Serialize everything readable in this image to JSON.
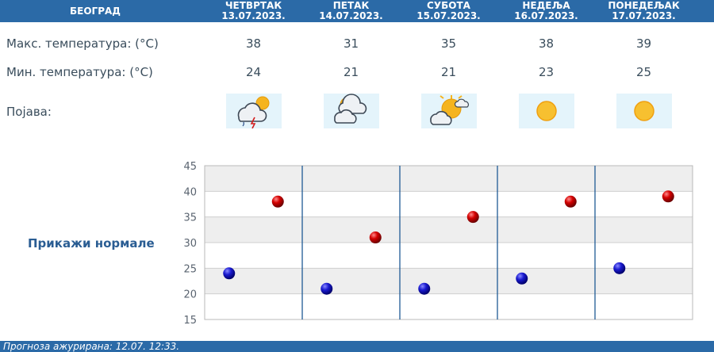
{
  "header": {
    "city": "БЕОГРАД",
    "days": [
      {
        "name": "ЧЕТВРТАК",
        "date": "13.07.2023."
      },
      {
        "name": "ПЕТАК",
        "date": "14.07.2023."
      },
      {
        "name": "СУБОТА",
        "date": "15.07.2023."
      },
      {
        "name": "НЕДЕЉА",
        "date": "16.07.2023."
      },
      {
        "name": "ПОНЕДЕЉАК",
        "date": "17.07.2023."
      }
    ]
  },
  "rows": {
    "max_label": "Макс. температура: (°C)",
    "min_label": "Мин. температура: (°C)",
    "phenomenon_label": "Појава:",
    "max": [
      "38",
      "31",
      "35",
      "38",
      "39"
    ],
    "min": [
      "24",
      "21",
      "21",
      "23",
      "25"
    ],
    "icons": [
      "thunderstorm-sun-icon",
      "partly-cloudy-icon",
      "sun-behind-cloud-icon",
      "sunny-icon",
      "sunny-icon"
    ]
  },
  "normals_label": "Прикажи нормале",
  "chart_data": {
    "type": "scatter",
    "ylim": [
      15,
      45
    ],
    "yticks": [
      "15",
      "20",
      "25",
      "30",
      "35",
      "40",
      "45"
    ],
    "series": [
      {
        "name": "max",
        "color": "#c0001a",
        "values": [
          38,
          31,
          35,
          38,
          39
        ]
      },
      {
        "name": "min",
        "color": "#1414b4",
        "values": [
          24,
          21,
          21,
          23,
          25
        ]
      }
    ],
    "categories": [
      "13.07.2023.",
      "14.07.2023.",
      "15.07.2023.",
      "16.07.2023.",
      "17.07.2023."
    ]
  },
  "footer": {
    "text": "Прогноза ажурирана:  12.07.  12:33."
  }
}
